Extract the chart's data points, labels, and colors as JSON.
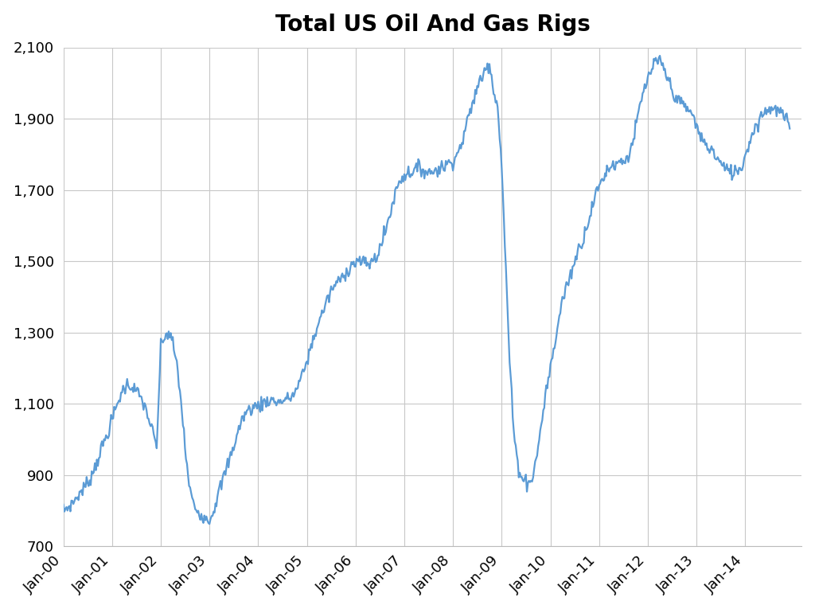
{
  "title": "Total US Oil And Gas Rigs",
  "line_color": "#5B9BD5",
  "background_color": "#FFFFFF",
  "grid_color": "#C8C8C8",
  "ylim": [
    700,
    2100
  ],
  "yticks": [
    700,
    900,
    1100,
    1300,
    1500,
    1700,
    1900,
    2100
  ],
  "title_fontsize": 20,
  "tick_fontsize": 13,
  "line_width": 1.6,
  "xtick_labels": [
    "Jan-00",
    "Jan-01",
    "Jan-02",
    "Jan-03",
    "Jan-04",
    "Jan-05",
    "Jan-06",
    "Jan-07",
    "Jan-08",
    "Jan-09",
    "Jan-10",
    "Jan-11",
    "Jan-12",
    "Jan-13",
    "Jan-14"
  ],
  "data": [
    [
      2000,
      1,
      800
    ],
    [
      2000,
      2,
      808
    ],
    [
      2000,
      3,
      818
    ],
    [
      2000,
      4,
      832
    ],
    [
      2000,
      5,
      848
    ],
    [
      2000,
      6,
      862
    ],
    [
      2000,
      7,
      878
    ],
    [
      2000,
      8,
      900
    ],
    [
      2000,
      9,
      930
    ],
    [
      2000,
      10,
      962
    ],
    [
      2000,
      11,
      992
    ],
    [
      2000,
      12,
      1020
    ],
    [
      2001,
      1,
      1055
    ],
    [
      2001,
      2,
      1090
    ],
    [
      2001,
      3,
      1120
    ],
    [
      2001,
      4,
      1145
    ],
    [
      2001,
      5,
      1155
    ],
    [
      2001,
      6,
      1148
    ],
    [
      2001,
      7,
      1135
    ],
    [
      2001,
      8,
      1118
    ],
    [
      2001,
      9,
      1095
    ],
    [
      2001,
      10,
      1060
    ],
    [
      2001,
      11,
      1020
    ],
    [
      2001,
      12,
      975
    ],
    [
      2002,
      1,
      1260
    ],
    [
      2002,
      2,
      1290
    ],
    [
      2002,
      3,
      1298
    ],
    [
      2002,
      4,
      1270
    ],
    [
      2002,
      5,
      1210
    ],
    [
      2002,
      6,
      1110
    ],
    [
      2002,
      7,
      980
    ],
    [
      2002,
      8,
      870
    ],
    [
      2002,
      9,
      820
    ],
    [
      2002,
      10,
      800
    ],
    [
      2002,
      11,
      790
    ],
    [
      2002,
      12,
      780
    ],
    [
      2003,
      1,
      775
    ],
    [
      2003,
      2,
      800
    ],
    [
      2003,
      3,
      840
    ],
    [
      2003,
      4,
      875
    ],
    [
      2003,
      5,
      910
    ],
    [
      2003,
      6,
      945
    ],
    [
      2003,
      7,
      980
    ],
    [
      2003,
      8,
      1020
    ],
    [
      2003,
      9,
      1055
    ],
    [
      2003,
      10,
      1075
    ],
    [
      2003,
      11,
      1085
    ],
    [
      2003,
      12,
      1090
    ],
    [
      2004,
      1,
      1095
    ],
    [
      2004,
      2,
      1100
    ],
    [
      2004,
      3,
      1108
    ],
    [
      2004,
      4,
      1110
    ],
    [
      2004,
      5,
      1108
    ],
    [
      2004,
      6,
      1105
    ],
    [
      2004,
      7,
      1108
    ],
    [
      2004,
      8,
      1112
    ],
    [
      2004,
      9,
      1118
    ],
    [
      2004,
      10,
      1130
    ],
    [
      2004,
      11,
      1155
    ],
    [
      2004,
      12,
      1185
    ],
    [
      2005,
      1,
      1220
    ],
    [
      2005,
      2,
      1260
    ],
    [
      2005,
      3,
      1295
    ],
    [
      2005,
      4,
      1330
    ],
    [
      2005,
      5,
      1360
    ],
    [
      2005,
      6,
      1390
    ],
    [
      2005,
      7,
      1415
    ],
    [
      2005,
      8,
      1435
    ],
    [
      2005,
      9,
      1445
    ],
    [
      2005,
      10,
      1460
    ],
    [
      2005,
      11,
      1475
    ],
    [
      2005,
      12,
      1490
    ],
    [
      2006,
      1,
      1498
    ],
    [
      2006,
      2,
      1500
    ],
    [
      2006,
      3,
      1495
    ],
    [
      2006,
      4,
      1492
    ],
    [
      2006,
      5,
      1498
    ],
    [
      2006,
      6,
      1510
    ],
    [
      2006,
      7,
      1535
    ],
    [
      2006,
      8,
      1570
    ],
    [
      2006,
      9,
      1610
    ],
    [
      2006,
      10,
      1655
    ],
    [
      2006,
      11,
      1700
    ],
    [
      2006,
      12,
      1730
    ],
    [
      2007,
      1,
      1740
    ],
    [
      2007,
      2,
      1748
    ],
    [
      2007,
      3,
      1752
    ],
    [
      2007,
      4,
      1758
    ],
    [
      2007,
      5,
      1762
    ],
    [
      2007,
      6,
      1755
    ],
    [
      2007,
      7,
      1748
    ],
    [
      2007,
      8,
      1752
    ],
    [
      2007,
      9,
      1758
    ],
    [
      2007,
      10,
      1762
    ],
    [
      2007,
      11,
      1768
    ],
    [
      2007,
      12,
      1775
    ],
    [
      2008,
      1,
      1785
    ],
    [
      2008,
      2,
      1800
    ],
    [
      2008,
      3,
      1825
    ],
    [
      2008,
      4,
      1865
    ],
    [
      2008,
      5,
      1910
    ],
    [
      2008,
      6,
      1950
    ],
    [
      2008,
      7,
      1985
    ],
    [
      2008,
      8,
      2015
    ],
    [
      2008,
      9,
      2040
    ],
    [
      2008,
      10,
      2060
    ],
    [
      2008,
      11,
      1980
    ],
    [
      2008,
      12,
      1940
    ],
    [
      2009,
      1,
      1760
    ],
    [
      2009,
      2,
      1480
    ],
    [
      2009,
      3,
      1220
    ],
    [
      2009,
      4,
      1020
    ],
    [
      2009,
      5,
      930
    ],
    [
      2009,
      6,
      895
    ],
    [
      2009,
      7,
      882
    ],
    [
      2009,
      8,
      880
    ],
    [
      2009,
      9,
      910
    ],
    [
      2009,
      10,
      980
    ],
    [
      2009,
      11,
      1060
    ],
    [
      2009,
      12,
      1140
    ],
    [
      2010,
      1,
      1200
    ],
    [
      2010,
      2,
      1260
    ],
    [
      2010,
      3,
      1330
    ],
    [
      2010,
      4,
      1390
    ],
    [
      2010,
      5,
      1430
    ],
    [
      2010,
      6,
      1460
    ],
    [
      2010,
      7,
      1500
    ],
    [
      2010,
      8,
      1535
    ],
    [
      2010,
      9,
      1560
    ],
    [
      2010,
      10,
      1600
    ],
    [
      2010,
      11,
      1640
    ],
    [
      2010,
      12,
      1680
    ],
    [
      2011,
      1,
      1710
    ],
    [
      2011,
      2,
      1735
    ],
    [
      2011,
      3,
      1755
    ],
    [
      2011,
      4,
      1768
    ],
    [
      2011,
      5,
      1775
    ],
    [
      2011,
      6,
      1778
    ],
    [
      2011,
      7,
      1782
    ],
    [
      2011,
      8,
      1790
    ],
    [
      2011,
      9,
      1820
    ],
    [
      2011,
      10,
      1870
    ],
    [
      2011,
      11,
      1930
    ],
    [
      2011,
      12,
      1975
    ],
    [
      2012,
      1,
      2010
    ],
    [
      2012,
      2,
      2040
    ],
    [
      2012,
      3,
      2058
    ],
    [
      2012,
      4,
      2060
    ],
    [
      2012,
      5,
      2040
    ],
    [
      2012,
      6,
      2010
    ],
    [
      2012,
      7,
      1980
    ],
    [
      2012,
      8,
      1960
    ],
    [
      2012,
      9,
      1945
    ],
    [
      2012,
      10,
      1935
    ],
    [
      2012,
      11,
      1925
    ],
    [
      2012,
      12,
      1910
    ],
    [
      2013,
      1,
      1880
    ],
    [
      2013,
      2,
      1850
    ],
    [
      2013,
      3,
      1830
    ],
    [
      2013,
      4,
      1820
    ],
    [
      2013,
      5,
      1810
    ],
    [
      2013,
      6,
      1790
    ],
    [
      2013,
      7,
      1775
    ],
    [
      2013,
      8,
      1760
    ],
    [
      2013,
      9,
      1752
    ],
    [
      2013,
      10,
      1750
    ],
    [
      2013,
      11,
      1755
    ],
    [
      2013,
      12,
      1762
    ],
    [
      2014,
      1,
      1795
    ],
    [
      2014,
      2,
      1835
    ],
    [
      2014,
      3,
      1862
    ],
    [
      2014,
      4,
      1888
    ],
    [
      2014,
      5,
      1908
    ],
    [
      2014,
      6,
      1922
    ],
    [
      2014,
      7,
      1930
    ],
    [
      2014,
      8,
      1928
    ],
    [
      2014,
      9,
      1922
    ],
    [
      2014,
      10,
      1915
    ],
    [
      2014,
      11,
      1900
    ],
    [
      2014,
      12,
      1872
    ]
  ]
}
